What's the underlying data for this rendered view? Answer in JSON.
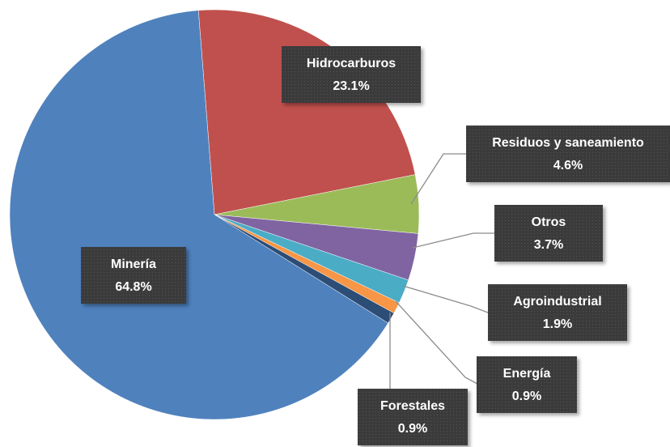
{
  "chart_data": {
    "type": "pie",
    "categories": [
      "Hidrocarburos",
      "Residuos y saneamiento",
      "Otros",
      "Agroindustrial",
      "Energía",
      "Forestales",
      "Minería"
    ],
    "values": [
      23.1,
      4.6,
      3.7,
      1.9,
      0.9,
      0.9,
      64.8
    ],
    "value_labels": [
      "23.1%",
      "4.6%",
      "3.7%",
      "1.9%",
      "0.9%",
      "0.9%",
      "64.8%"
    ],
    "colors": [
      "#c0504d",
      "#9bbb59",
      "#8064a2",
      "#4bacc6",
      "#f79646",
      "#2c4d75",
      "#4f81bd"
    ]
  }
}
